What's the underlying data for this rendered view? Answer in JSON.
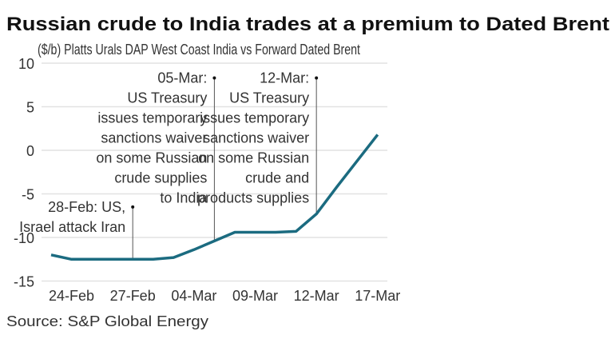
{
  "chart_data": {
    "type": "line",
    "title": "Russian crude to India trades at a premium to Dated Brent",
    "subtitle": "($/b) Platts Urals DAP West Coast India vs Forward Dated Brent",
    "source": "Source: S&P Global Energy",
    "ylim": [
      -15,
      10
    ],
    "yticks": [
      10,
      5,
      0,
      -5,
      -10,
      -15
    ],
    "ytick_labels": [
      "10",
      "5",
      "0",
      "-5",
      "-10",
      "-15"
    ],
    "xtick_labels": [
      "24-Feb",
      "27-Feb",
      "04-Mar",
      "09-Mar",
      "12-Mar",
      "17-Mar"
    ],
    "grid": true,
    "line_color": "#1b6b80",
    "x": [
      "23-Feb",
      "24-Feb",
      "25-Feb",
      "26-Feb",
      "27-Feb",
      "02-Mar",
      "03-Mar",
      "04-Mar",
      "05-Mar",
      "06-Mar",
      "09-Mar",
      "10-Mar",
      "11-Mar",
      "12-Mar",
      "13-Mar",
      "16-Mar",
      "17-Mar"
    ],
    "values": [
      -12.0,
      -12.5,
      -12.5,
      -12.5,
      -12.5,
      -12.5,
      -12.3,
      -11.4,
      -10.4,
      -9.4,
      -9.4,
      -9.4,
      -9.3,
      -7.3,
      -4.2,
      -1.2,
      1.8
    ],
    "annotations": [
      {
        "date": "27-Feb",
        "top_value": -6.5,
        "lines": [
          "28-Feb: US,",
          "Israel attack Iran"
        ]
      },
      {
        "date": "05-Mar",
        "top_value": 8.3,
        "lines": [
          "05-Mar:",
          "US Treasury",
          "issues temporary",
          "sanctions waiver",
          "on some Russian",
          "crude supplies",
          "to India"
        ]
      },
      {
        "date": "12-Mar",
        "top_value": 8.3,
        "lines": [
          "12-Mar:",
          "US Treasury",
          "issues temporary",
          "sanctions waiver",
          "on some Russian",
          "crude and",
          "products supplies"
        ]
      }
    ]
  }
}
